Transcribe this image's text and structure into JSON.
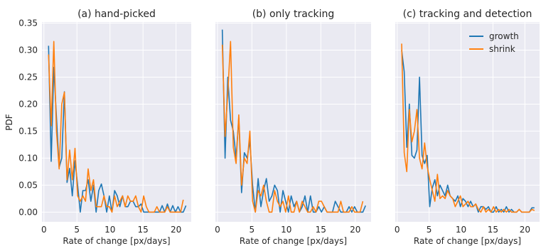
{
  "chart_data": {
    "type": "line",
    "ylabel": "PDF",
    "xlabel": "Rate of change [px/days]",
    "xlim": [
      -0.3,
      22.3
    ],
    "ylim": [
      -0.018,
      0.352
    ],
    "xticks": [
      0,
      5,
      10,
      15,
      20
    ],
    "yticks": [
      0.0,
      0.05,
      0.1,
      0.15,
      0.2,
      0.25,
      0.3,
      0.35
    ],
    "ytick_labels": [
      "0.00",
      "0.05",
      "0.10",
      "0.15",
      "0.20",
      "0.25",
      "0.30",
      "0.35"
    ],
    "grid": true,
    "legend": {
      "placement": "top-right",
      "panel": 2
    },
    "series_colors": {
      "growth": "#1f77b4",
      "shrink": "#ff7f0e"
    },
    "panels": [
      {
        "title": "(a) hand-picked",
        "series": [
          {
            "name": "growth",
            "x": [
              0.7,
              1.1,
              1.5,
              1.9,
              2.3,
              2.7,
              3.1,
              3.5,
              3.9,
              4.3,
              4.7,
              5.1,
              5.5,
              5.9,
              6.3,
              6.7,
              7.1,
              7.5,
              7.9,
              8.3,
              8.7,
              9.1,
              9.5,
              9.9,
              10.3,
              10.7,
              11.1,
              11.5,
              11.9,
              12.3,
              12.7,
              13.1,
              13.5,
              13.9,
              14.3,
              14.7,
              15.1,
              15.5,
              15.9,
              16.3,
              16.7,
              17.1,
              17.5,
              17.9,
              18.3,
              18.7,
              19.1,
              19.5,
              19.9,
              20.3,
              20.7,
              21.1,
              21.5
            ],
            "values": [
              0.308,
              0.094,
              0.268,
              0.176,
              0.083,
              0.1,
              0.223,
              0.055,
              0.081,
              0.03,
              0.095,
              0.05,
              0.0,
              0.04,
              0.04,
              0.06,
              0.02,
              0.05,
              0.0,
              0.04,
              0.052,
              0.03,
              0.0,
              0.03,
              0.0,
              0.04,
              0.03,
              0.01,
              0.03,
              0.01,
              0.01,
              0.02,
              0.02,
              0.01,
              0.01,
              0.015,
              0.0,
              0.0,
              0.0,
              0.0,
              0.0,
              0.0,
              0.0,
              0.012,
              0.0,
              0.015,
              0.0,
              0.012,
              0.0,
              0.01,
              0.0,
              0.0,
              0.012
            ]
          },
          {
            "name": "shrink",
            "x": [
              0.7,
              1.1,
              1.5,
              1.9,
              2.3,
              2.7,
              3.1,
              3.5,
              3.9,
              4.3,
              4.7,
              5.1,
              5.5,
              5.9,
              6.3,
              6.7,
              7.1,
              7.5,
              7.9,
              8.3,
              8.7,
              9.1,
              9.5,
              9.9,
              10.3,
              10.7,
              11.1,
              11.5,
              11.9,
              12.3,
              12.7,
              13.1,
              13.5,
              13.9,
              14.3,
              14.7,
              15.1,
              15.5,
              15.9,
              16.3,
              16.7,
              17.1,
              17.5,
              17.9,
              18.3,
              18.7,
              19.1,
              19.5,
              19.9,
              20.3,
              20.7,
              21.1
            ],
            "values": [
              0.292,
              0.16,
              0.316,
              0.15,
              0.08,
              0.2,
              0.222,
              0.06,
              0.115,
              0.06,
              0.118,
              0.03,
              0.02,
              0.03,
              0.02,
              0.08,
              0.04,
              0.06,
              0.01,
              0.01,
              0.01,
              0.03,
              0.01,
              0.01,
              0.0,
              0.03,
              0.01,
              0.02,
              0.03,
              0.01,
              0.03,
              0.02,
              0.02,
              0.03,
              0.01,
              0.0,
              0.03,
              0.01,
              0.0,
              0.0,
              0.0,
              0.01,
              0.0,
              0.0,
              0.0,
              0.01,
              0.0,
              0.0,
              0.0,
              0.0,
              0.0,
              0.023
            ]
          }
        ]
      },
      {
        "title": "(b) only tracking",
        "series": [
          {
            "name": "growth",
            "x": [
              0.7,
              1.1,
              1.5,
              1.9,
              2.3,
              2.7,
              3.1,
              3.5,
              3.9,
              4.3,
              4.7,
              5.1,
              5.5,
              5.9,
              6.3,
              6.7,
              7.1,
              7.5,
              7.9,
              8.3,
              8.7,
              9.1,
              9.5,
              9.9,
              10.3,
              10.7,
              11.1,
              11.5,
              11.9,
              12.3,
              12.7,
              13.1,
              13.5,
              13.9,
              14.3,
              14.7,
              15.1,
              15.5,
              15.9,
              16.3,
              16.7,
              17.1,
              17.5,
              17.9,
              18.3,
              18.7,
              19.1,
              19.5,
              19.9,
              20.3,
              20.7,
              21.1,
              21.5
            ],
            "values": [
              0.338,
              0.1,
              0.25,
              0.17,
              0.15,
              0.1,
              0.175,
              0.036,
              0.11,
              0.1,
              0.132,
              0.05,
              0.0,
              0.062,
              0.01,
              0.04,
              0.062,
              0.02,
              0.03,
              0.05,
              0.04,
              0.0,
              0.04,
              0.02,
              0.0,
              0.03,
              0.01,
              0.02,
              0.0,
              0.01,
              0.03,
              0.0,
              0.03,
              0.0,
              0.0,
              0.01,
              0.0,
              0.01,
              0.0,
              0.0,
              0.0,
              0.02,
              0.01,
              0.0,
              0.0,
              0.0,
              0.01,
              0.0,
              0.01,
              0.0,
              0.0,
              0.0,
              0.012
            ]
          },
          {
            "name": "shrink",
            "x": [
              0.7,
              1.1,
              1.5,
              1.9,
              2.3,
              2.7,
              3.1,
              3.5,
              3.9,
              4.3,
              4.7,
              5.1,
              5.5,
              5.9,
              6.3,
              6.7,
              7.1,
              7.5,
              7.9,
              8.3,
              8.7,
              9.1,
              9.5,
              9.9,
              10.3,
              10.7,
              11.1,
              11.5,
              11.9,
              12.3,
              12.7,
              13.1,
              13.5,
              13.9,
              14.3,
              14.7,
              15.1,
              15.5,
              15.9,
              16.3,
              16.7,
              17.1,
              17.5,
              17.9,
              18.3,
              18.7,
              19.1,
              19.5,
              19.9,
              20.3,
              20.7,
              21.1
            ],
            "values": [
              0.31,
              0.14,
              0.22,
              0.316,
              0.12,
              0.09,
              0.18,
              0.05,
              0.1,
              0.09,
              0.15,
              0.02,
              0.0,
              0.04,
              0.03,
              0.05,
              0.02,
              0.0,
              0.0,
              0.04,
              0.02,
              0.01,
              0.02,
              0.0,
              0.03,
              0.0,
              0.0,
              0.02,
              0.0,
              0.02,
              0.01,
              0.0,
              0.0,
              0.01,
              0.0,
              0.02,
              0.02,
              0.01,
              0.0,
              0.0,
              0.0,
              0.0,
              0.0,
              0.02,
              0.0,
              0.0,
              0.0,
              0.01,
              0.0,
              0.0,
              0.0,
              0.02
            ]
          }
        ]
      },
      {
        "title": "(c) tracking and detection",
        "series": [
          {
            "name": "growth",
            "x": [
              0.7,
              1.1,
              1.5,
              1.9,
              2.3,
              2.7,
              3.1,
              3.5,
              3.9,
              4.3,
              4.7,
              5.1,
              5.5,
              5.9,
              6.3,
              6.7,
              7.1,
              7.5,
              7.9,
              8.3,
              8.7,
              9.1,
              9.5,
              9.9,
              10.3,
              10.7,
              11.1,
              11.5,
              11.9,
              12.3,
              12.7,
              13.1,
              13.5,
              13.9,
              14.3,
              14.7,
              15.1,
              15.5,
              15.9,
              16.3,
              16.7,
              17.1,
              17.5,
              17.9,
              18.3,
              18.7,
              19.1,
              19.5,
              19.9,
              20.3,
              20.7,
              21.1,
              21.5
            ],
            "values": [
              0.3,
              0.26,
              0.12,
              0.2,
              0.105,
              0.1,
              0.115,
              0.25,
              0.105,
              0.09,
              0.105,
              0.01,
              0.045,
              0.06,
              0.03,
              0.05,
              0.04,
              0.03,
              0.05,
              0.03,
              0.025,
              0.02,
              0.03,
              0.01,
              0.025,
              0.02,
              0.01,
              0.02,
              0.01,
              0.015,
              0.0,
              0.01,
              0.01,
              0.005,
              0.01,
              0.0,
              0.0,
              0.01,
              0.0,
              0.005,
              0.0,
              0.01,
              0.0,
              0.005,
              0.0,
              0.0,
              0.005,
              0.0,
              0.0,
              0.0,
              0.0,
              0.008,
              0.008
            ]
          },
          {
            "name": "shrink",
            "x": [
              0.7,
              1.1,
              1.5,
              1.9,
              2.3,
              2.7,
              3.1,
              3.5,
              3.9,
              4.3,
              4.7,
              5.1,
              5.5,
              5.9,
              6.3,
              6.7,
              7.1,
              7.5,
              7.9,
              8.3,
              8.7,
              9.1,
              9.5,
              9.9,
              10.3,
              10.7,
              11.1,
              11.5,
              11.9,
              12.3,
              12.7,
              13.1,
              13.5,
              13.9,
              14.3,
              14.7,
              15.1,
              15.5,
              15.9,
              16.3,
              16.7,
              17.1,
              17.5,
              17.9,
              18.3,
              18.7,
              19.1,
              19.5,
              19.9,
              20.3,
              20.7,
              21.1,
              21.5
            ],
            "values": [
              0.312,
              0.11,
              0.075,
              0.19,
              0.13,
              0.15,
              0.19,
              0.1,
              0.08,
              0.128,
              0.085,
              0.06,
              0.04,
              0.02,
              0.07,
              0.025,
              0.03,
              0.025,
              0.04,
              0.03,
              0.025,
              0.01,
              0.02,
              0.03,
              0.01,
              0.015,
              0.02,
              0.01,
              0.01,
              0.015,
              0.005,
              0.0,
              0.01,
              0.0,
              0.005,
              0.0,
              0.01,
              0.0,
              0.005,
              0.0,
              0.005,
              0.0,
              0.005,
              0.0,
              0.0,
              0.0,
              0.005,
              0.0,
              0.0,
              0.0,
              0.0,
              0.005,
              0.003
            ]
          }
        ]
      }
    ]
  }
}
